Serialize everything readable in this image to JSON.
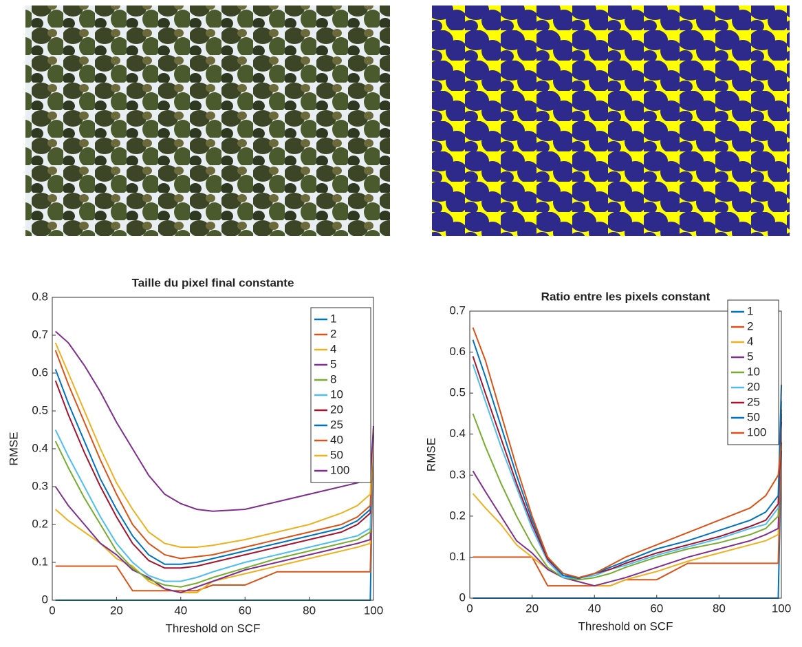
{
  "chart_data": [
    {
      "type": "line",
      "title": "Taille du pixel final constante",
      "xlabel": "Threshold on SCF",
      "ylabel": "RMSE",
      "xlim": [
        0,
        100
      ],
      "ylim": [
        0,
        0.8
      ],
      "xticks": [
        0,
        20,
        40,
        60,
        80,
        100
      ],
      "yticks": [
        0,
        0.1,
        0.2,
        0.3,
        0.4,
        0.5,
        0.6,
        0.7,
        0.8
      ],
      "legend": "northeast",
      "x": [
        1,
        5,
        10,
        15,
        20,
        25,
        30,
        35,
        40,
        45,
        50,
        60,
        70,
        80,
        90,
        95,
        99,
        100
      ],
      "series": [
        {
          "name": "1",
          "color": "#0072BD",
          "values": [
            0,
            0,
            0,
            0,
            0,
            0,
            0,
            0,
            0,
            0,
            0,
            0,
            0,
            0,
            0,
            0,
            0,
            0.46
          ]
        },
        {
          "name": "2",
          "color": "#D95319",
          "values": [
            0.09,
            0.09,
            0.09,
            0.09,
            0.09,
            0.025,
            0.025,
            0.025,
            0.025,
            0.025,
            0.04,
            0.04,
            0.075,
            0.075,
            0.075,
            0.075,
            0.075,
            0.45
          ]
        },
        {
          "name": "4",
          "color": "#EDB120",
          "values": [
            0.24,
            0.21,
            0.18,
            0.15,
            0.11,
            0.09,
            0.05,
            0.03,
            0.02,
            0.02,
            0.05,
            0.07,
            0.09,
            0.11,
            0.13,
            0.14,
            0.15,
            0.45
          ]
        },
        {
          "name": "5",
          "color": "#7E2F8E",
          "values": [
            0.3,
            0.25,
            0.2,
            0.15,
            0.12,
            0.08,
            0.06,
            0.03,
            0.02,
            0.035,
            0.05,
            0.08,
            0.1,
            0.12,
            0.14,
            0.15,
            0.16,
            0.45
          ]
        },
        {
          "name": "8",
          "color": "#77AC30",
          "values": [
            0.42,
            0.35,
            0.27,
            0.2,
            0.13,
            0.085,
            0.055,
            0.04,
            0.035,
            0.045,
            0.06,
            0.085,
            0.11,
            0.13,
            0.15,
            0.16,
            0.18,
            0.45
          ]
        },
        {
          "name": "10",
          "color": "#4DBEEE",
          "values": [
            0.45,
            0.38,
            0.3,
            0.22,
            0.15,
            0.1,
            0.065,
            0.05,
            0.05,
            0.06,
            0.075,
            0.1,
            0.12,
            0.14,
            0.16,
            0.17,
            0.19,
            0.45
          ]
        },
        {
          "name": "20",
          "color": "#A2142F",
          "values": [
            0.58,
            0.49,
            0.39,
            0.3,
            0.22,
            0.15,
            0.105,
            0.085,
            0.085,
            0.09,
            0.1,
            0.12,
            0.14,
            0.16,
            0.18,
            0.2,
            0.23,
            0.45
          ]
        },
        {
          "name": "25",
          "color": "#0072BD",
          "values": [
            0.61,
            0.52,
            0.42,
            0.32,
            0.24,
            0.17,
            0.12,
            0.095,
            0.095,
            0.1,
            0.11,
            0.13,
            0.15,
            0.17,
            0.19,
            0.21,
            0.24,
            0.45
          ]
        },
        {
          "name": "40",
          "color": "#D95319",
          "values": [
            0.66,
            0.57,
            0.47,
            0.37,
            0.28,
            0.2,
            0.15,
            0.12,
            0.11,
            0.115,
            0.12,
            0.14,
            0.16,
            0.18,
            0.2,
            0.22,
            0.25,
            0.45
          ]
        },
        {
          "name": "50",
          "color": "#EDB120",
          "values": [
            0.68,
            0.6,
            0.5,
            0.4,
            0.31,
            0.24,
            0.18,
            0.15,
            0.14,
            0.14,
            0.145,
            0.16,
            0.18,
            0.2,
            0.23,
            0.25,
            0.28,
            0.45
          ]
        },
        {
          "name": "100",
          "color": "#7E2F8E",
          "values": [
            0.71,
            0.68,
            0.62,
            0.55,
            0.47,
            0.4,
            0.33,
            0.28,
            0.255,
            0.24,
            0.235,
            0.24,
            0.26,
            0.28,
            0.3,
            0.31,
            0.32,
            0.46
          ]
        }
      ]
    },
    {
      "type": "line",
      "title": "Ratio entre les pixels constant",
      "xlabel": "Threshold on SCF",
      "ylabel": "RMSE",
      "xlim": [
        0,
        100
      ],
      "ylim": [
        0,
        0.7
      ],
      "xticks": [
        0,
        20,
        40,
        60,
        80,
        100
      ],
      "yticks": [
        0,
        0.1,
        0.2,
        0.3,
        0.4,
        0.5,
        0.6,
        0.7
      ],
      "legend": "northeast",
      "x": [
        1,
        5,
        10,
        15,
        20,
        25,
        30,
        35,
        40,
        45,
        50,
        60,
        70,
        80,
        90,
        95,
        99,
        100
      ],
      "series": [
        {
          "name": "1",
          "color": "#0072BD",
          "values": [
            0,
            0,
            0,
            0,
            0,
            0,
            0,
            0,
            0,
            0,
            0,
            0,
            0,
            0,
            0,
            0,
            0,
            0.36
          ]
        },
        {
          "name": "2",
          "color": "#D95319",
          "values": [
            0.1,
            0.1,
            0.1,
            0.1,
            0.1,
            0.03,
            0.03,
            0.03,
            0.03,
            0.03,
            0.045,
            0.045,
            0.085,
            0.085,
            0.085,
            0.085,
            0.085,
            0.38
          ]
        },
        {
          "name": "4",
          "color": "#EDB120",
          "values": [
            0.255,
            0.22,
            0.18,
            0.13,
            0.1,
            0.07,
            0.05,
            0.04,
            0.03,
            0.03,
            0.045,
            0.065,
            0.09,
            0.11,
            0.13,
            0.14,
            0.155,
            0.45
          ]
        },
        {
          "name": "5",
          "color": "#7E2F8E",
          "values": [
            0.31,
            0.26,
            0.2,
            0.14,
            0.11,
            0.07,
            0.05,
            0.04,
            0.03,
            0.04,
            0.05,
            0.075,
            0.1,
            0.12,
            0.14,
            0.155,
            0.17,
            0.45
          ]
        },
        {
          "name": "10",
          "color": "#77AC30",
          "values": [
            0.45,
            0.37,
            0.28,
            0.2,
            0.13,
            0.075,
            0.05,
            0.045,
            0.05,
            0.06,
            0.075,
            0.1,
            0.12,
            0.135,
            0.155,
            0.17,
            0.2,
            0.46
          ]
        },
        {
          "name": "20",
          "color": "#4DBEEE",
          "values": [
            0.57,
            0.48,
            0.37,
            0.27,
            0.17,
            0.09,
            0.05,
            0.05,
            0.055,
            0.07,
            0.08,
            0.105,
            0.125,
            0.145,
            0.17,
            0.18,
            0.22,
            0.48
          ]
        },
        {
          "name": "25",
          "color": "#A2142F",
          "values": [
            0.59,
            0.5,
            0.39,
            0.28,
            0.18,
            0.095,
            0.055,
            0.05,
            0.06,
            0.07,
            0.085,
            0.11,
            0.13,
            0.15,
            0.175,
            0.19,
            0.23,
            0.43
          ]
        },
        {
          "name": "50",
          "color": "#0072BD",
          "values": [
            0.63,
            0.54,
            0.42,
            0.3,
            0.19,
            0.1,
            0.055,
            0.048,
            0.06,
            0.075,
            0.09,
            0.12,
            0.14,
            0.165,
            0.19,
            0.21,
            0.25,
            0.52
          ]
        },
        {
          "name": "100",
          "color": "#D95319",
          "values": [
            0.66,
            0.58,
            0.45,
            0.32,
            0.2,
            0.1,
            0.06,
            0.05,
            0.06,
            0.08,
            0.1,
            0.13,
            0.16,
            0.19,
            0.22,
            0.25,
            0.3,
            0.38
          ]
        }
      ]
    }
  ]
}
